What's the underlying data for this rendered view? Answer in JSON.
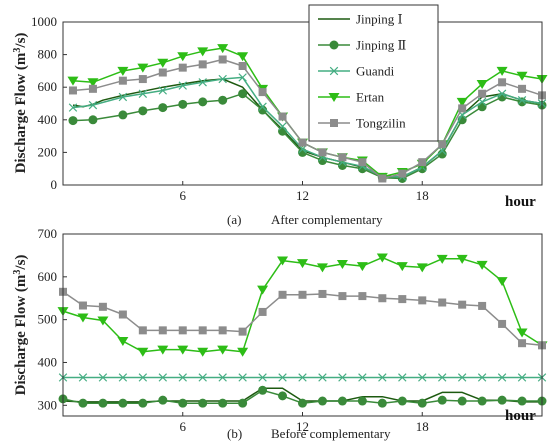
{
  "colors": {
    "Jinping I": "#1d5a10",
    "Jinping II": "#3a8a3a",
    "Guandi": "#44ad82",
    "Ertan": "#2dbd16",
    "Tongzilin": "#8c8c8c"
  },
  "chart_data": [
    {
      "type": "line",
      "caption_letter": "(a)",
      "caption_text": "After complementary",
      "xlabel": "hour",
      "ylabel_main": "Discharge Flow (m",
      "ylabel_sup": "3",
      "ylabel_tail": "/s)",
      "xlim": [
        0,
        24
      ],
      "ylim": [
        0,
        1000
      ],
      "xticks": [
        6,
        12,
        18
      ],
      "yticks": [
        0,
        200,
        400,
        600,
        800,
        1000
      ],
      "legend": "top-right",
      "series": [
        {
          "name": "Jinping Ⅰ",
          "marker": "none",
          "x": [
            0.5,
            1,
            1.5,
            2,
            3,
            4,
            5,
            6,
            7,
            8,
            9,
            10,
            11,
            12,
            13,
            14,
            15,
            16,
            17,
            18,
            19,
            20,
            21,
            22,
            23,
            24
          ],
          "y": [
            490,
            480,
            495,
            520,
            550,
            575,
            600,
            620,
            640,
            650,
            600,
            460,
            340,
            210,
            170,
            140,
            110,
            55,
            50,
            110,
            210,
            430,
            540,
            560,
            520,
            500
          ]
        },
        {
          "name": "Jinping Ⅱ",
          "marker": "circle",
          "x": [
            0.5,
            1.5,
            3,
            4,
            5,
            6,
            7,
            8,
            9,
            10,
            11,
            12,
            13,
            14,
            15,
            16,
            17,
            18,
            19,
            20,
            21,
            22,
            23,
            24
          ],
          "y": [
            395,
            400,
            430,
            455,
            475,
            495,
            510,
            520,
            560,
            460,
            330,
            200,
            150,
            120,
            100,
            45,
            40,
            100,
            190,
            400,
            480,
            540,
            510,
            490
          ]
        },
        {
          "name": "Guandi",
          "marker": "x",
          "x": [
            0.5,
            1.5,
            3,
            4,
            5,
            6,
            7,
            8,
            9,
            10,
            11,
            12,
            13,
            14,
            15,
            16,
            17,
            18,
            19,
            20,
            21,
            22,
            23,
            24
          ],
          "y": [
            475,
            490,
            540,
            560,
            580,
            610,
            630,
            650,
            660,
            480,
            360,
            220,
            170,
            140,
            115,
            50,
            50,
            110,
            210,
            430,
            510,
            560,
            520,
            500
          ]
        },
        {
          "name": "Ertan",
          "marker": "triangle-down",
          "x": [
            0.5,
            1.5,
            3,
            4,
            5,
            6,
            7,
            8,
            9,
            10,
            11,
            12,
            13,
            14,
            15,
            16,
            17,
            18,
            19,
            20,
            21,
            22,
            23,
            24
          ],
          "y": [
            640,
            630,
            700,
            720,
            750,
            790,
            820,
            840,
            790,
            590,
            420,
            260,
            200,
            170,
            150,
            50,
            80,
            130,
            250,
            510,
            620,
            700,
            670,
            650
          ]
        },
        {
          "name": "Tongzilin",
          "marker": "square",
          "x": [
            0.5,
            1.5,
            3,
            4,
            5,
            6,
            7,
            8,
            9,
            10,
            11,
            12,
            13,
            14,
            15,
            16,
            17,
            18,
            19,
            20,
            21,
            22,
            23,
            24
          ],
          "y": [
            580,
            590,
            640,
            650,
            690,
            720,
            740,
            770,
            730,
            570,
            420,
            260,
            200,
            170,
            140,
            40,
            70,
            140,
            250,
            470,
            560,
            630,
            590,
            550
          ]
        }
      ]
    },
    {
      "type": "line",
      "caption_letter": "(b)",
      "caption_text": "Before complementary",
      "xlabel": "hour",
      "ylabel_main": "Discharge Flow (m",
      "ylabel_sup": "3",
      "ylabel_tail": "/s)",
      "xlim": [
        0,
        24
      ],
      "ylim": [
        275,
        700
      ],
      "xticks": [
        6,
        12,
        18
      ],
      "yticks": [
        300,
        400,
        500,
        600,
        700
      ],
      "series": [
        {
          "name": "Jinping Ⅰ",
          "marker": "none",
          "x": [
            0,
            1,
            2,
            3,
            4,
            5,
            6,
            7,
            8,
            9,
            10,
            11,
            12,
            13,
            14,
            15,
            16,
            17,
            18,
            19,
            20,
            21,
            22,
            23,
            24
          ],
          "y": [
            310,
            308,
            308,
            308,
            308,
            310,
            310,
            310,
            310,
            310,
            340,
            340,
            310,
            310,
            310,
            320,
            320,
            310,
            310,
            330,
            330,
            312,
            312,
            308,
            308
          ]
        },
        {
          "name": "Jinping Ⅱ",
          "marker": "circle",
          "x": [
            0,
            1,
            2,
            3,
            4,
            5,
            6,
            7,
            8,
            9,
            10,
            11,
            12,
            13,
            14,
            15,
            16,
            17,
            18,
            19,
            20,
            21,
            22,
            23,
            24
          ],
          "y": [
            315,
            305,
            305,
            305,
            305,
            312,
            305,
            305,
            305,
            305,
            335,
            322,
            305,
            310,
            310,
            310,
            305,
            310,
            305,
            312,
            310,
            310,
            312,
            310,
            310
          ]
        },
        {
          "name": "Guandi",
          "marker": "x",
          "x": [
            0,
            1,
            2,
            3,
            4,
            5,
            6,
            7,
            8,
            9,
            10,
            11,
            12,
            13,
            14,
            15,
            16,
            17,
            18,
            19,
            20,
            21,
            22,
            23,
            24
          ],
          "y": [
            365,
            365,
            365,
            365,
            365,
            365,
            365,
            365,
            365,
            365,
            365,
            365,
            365,
            365,
            365,
            365,
            365,
            365,
            365,
            365,
            365,
            365,
            365,
            365,
            365
          ]
        },
        {
          "name": "Ertan",
          "marker": "triangle-down",
          "x": [
            0,
            1,
            2,
            3,
            4,
            5,
            6,
            7,
            8,
            9,
            10,
            11,
            12,
            13,
            14,
            15,
            16,
            17,
            18,
            19,
            20,
            21,
            22,
            23,
            24
          ],
          "y": [
            520,
            505,
            498,
            450,
            425,
            430,
            430,
            425,
            430,
            425,
            570,
            638,
            632,
            622,
            630,
            625,
            645,
            625,
            622,
            642,
            642,
            628,
            590,
            470,
            440
          ]
        },
        {
          "name": "Tongzilin",
          "marker": "square",
          "x": [
            0,
            1,
            2,
            3,
            4,
            5,
            6,
            7,
            8,
            9,
            10,
            11,
            12,
            13,
            14,
            15,
            16,
            17,
            18,
            19,
            20,
            21,
            22,
            23,
            24
          ],
          "y": [
            565,
            533,
            530,
            512,
            475,
            475,
            475,
            475,
            475,
            472,
            518,
            558,
            558,
            560,
            555,
            555,
            550,
            548,
            545,
            540,
            535,
            532,
            490,
            445,
            440
          ]
        }
      ]
    }
  ]
}
